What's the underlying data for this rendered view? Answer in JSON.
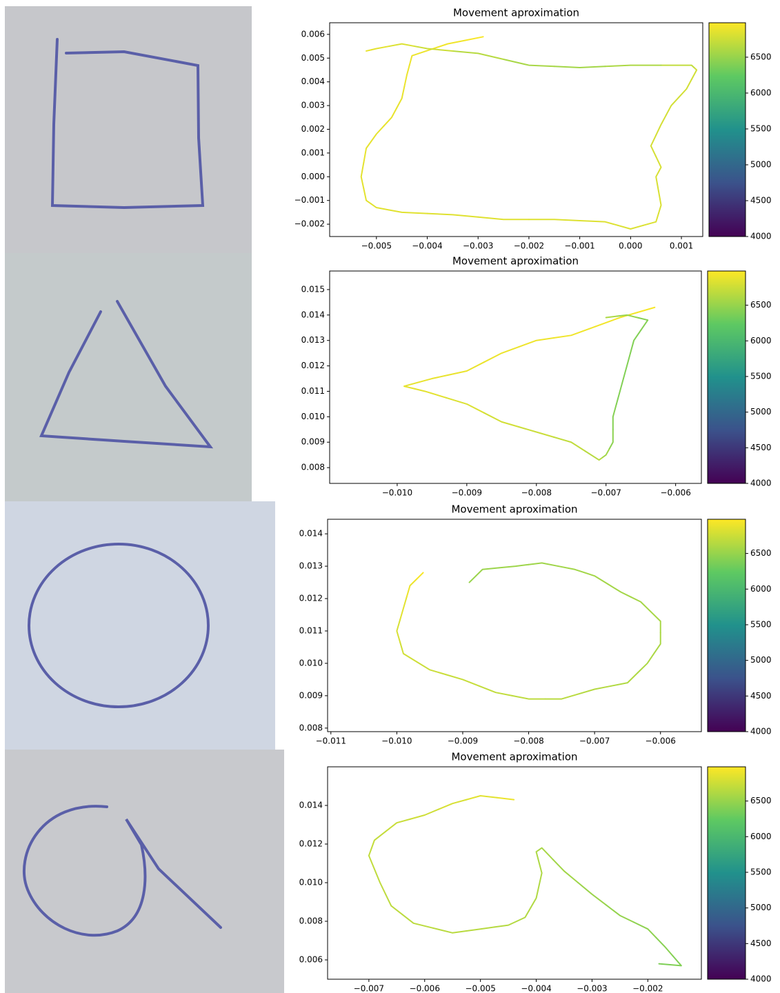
{
  "chart_data": [
    {
      "type": "line",
      "title": "Movement aproximation",
      "colormap": "viridis",
      "x": [
        -0.0029,
        -0.0036,
        -0.0043,
        -0.0044,
        -0.0045,
        -0.0047,
        -0.005,
        -0.0052,
        -0.0053,
        -0.0052,
        -0.005,
        -0.0045,
        -0.0035,
        -0.0025,
        -0.0015,
        -0.0005,
        0.0,
        0.0005,
        0.0006,
        0.0005,
        0.0006,
        0.0004,
        0.0006,
        0.0008,
        0.0011,
        0.0013,
        0.0012,
        0.0,
        -0.001,
        -0.002,
        -0.003,
        -0.004,
        -0.0045,
        -0.005,
        -0.0052
      ],
      "y": [
        0.0059,
        0.0056,
        0.0051,
        0.0043,
        0.0033,
        0.0025,
        0.0018,
        0.0012,
        0.0,
        -0.001,
        -0.0013,
        -0.0015,
        -0.0016,
        -0.0018,
        -0.0018,
        -0.0019,
        -0.0022,
        -0.0019,
        -0.0012,
        0.0,
        0.0004,
        0.0013,
        0.0022,
        0.003,
        0.0037,
        0.0045,
        0.0047,
        0.0047,
        0.0046,
        0.0047,
        0.0052,
        0.0054,
        0.0056,
        0.0054,
        0.0053
      ],
      "c": [
        6950,
        6920,
        6900,
        6900,
        6880,
        6880,
        6870,
        6870,
        6860,
        6860,
        6850,
        6850,
        6840,
        6840,
        6830,
        6830,
        6820,
        6820,
        6810,
        6800,
        6800,
        6790,
        6790,
        6780,
        6780,
        6770,
        6700,
        6600,
        6560,
        6580,
        6650,
        6750,
        6820,
        6860,
        6880
      ],
      "xlim": [
        -0.00592,
        0.00142
      ],
      "ylim": [
        -0.00252,
        0.00649
      ],
      "xticks": [
        {
          "value": -0.005,
          "label": "−0.005"
        },
        {
          "value": -0.004,
          "label": "−0.004"
        },
        {
          "value": -0.003,
          "label": "−0.003"
        },
        {
          "value": -0.002,
          "label": "−0.002"
        },
        {
          "value": -0.001,
          "label": "−0.001"
        },
        {
          "value": 0,
          "label": "0.000"
        },
        0.001
      ],
      "yticks": [
        {
          "value": -0.002,
          "label": "−0.002"
        },
        {
          "value": -0.001,
          "label": "−0.001"
        },
        {
          "value": 0,
          "label": "0.000"
        },
        0.001,
        0.002,
        0.003,
        0.004,
        0.005,
        0.006
      ],
      "clim": [
        4000,
        6980
      ],
      "colorbar_ticks": [
        4000,
        4500,
        5000,
        5500,
        6000,
        6500
      ]
    },
    {
      "type": "line",
      "title": "Movement aproximation",
      "colormap": "viridis",
      "x": [
        -0.0063,
        -0.0068,
        -0.0075,
        -0.008,
        -0.0085,
        -0.009,
        -0.0095,
        -0.0099,
        -0.0096,
        -0.009,
        -0.0085,
        -0.008,
        -0.0075,
        -0.0071,
        -0.007,
        -0.0069,
        -0.0069,
        -0.0068,
        -0.0067,
        -0.0066,
        -0.0064,
        -0.0067,
        -0.007
      ],
      "y": [
        0.0143,
        0.0139,
        0.0132,
        0.013,
        0.0125,
        0.0118,
        0.0115,
        0.0112,
        0.011,
        0.0105,
        0.0098,
        0.0094,
        0.009,
        0.0083,
        0.0085,
        0.009,
        0.01,
        0.011,
        0.012,
        0.013,
        0.0138,
        0.014,
        0.0139
      ],
      "c": [
        6950,
        6930,
        6920,
        6910,
        6900,
        6890,
        6880,
        6870,
        6860,
        6820,
        6780,
        6740,
        6700,
        6650,
        6550,
        6450,
        6420,
        6400,
        6400,
        6400,
        6420,
        6500,
        6600
      ],
      "xlim": [
        -0.01097,
        -0.00563
      ],
      "ylim": [
        0.00738,
        0.01573
      ],
      "xticks": [
        {
          "value": -0.01,
          "label": "−0.010"
        },
        {
          "value": -0.009,
          "label": "−0.009"
        },
        {
          "value": -0.008,
          "label": "−0.008"
        },
        {
          "value": -0.007,
          "label": "−0.007"
        },
        {
          "value": -0.006,
          "label": "−0.006"
        }
      ],
      "yticks": [
        0.008,
        0.009,
        {
          "value": 0.01,
          "label": "0.010"
        },
        0.011,
        0.012,
        0.013,
        0.014,
        0.015
      ],
      "clim": [
        4000,
        6980
      ],
      "colorbar_ticks": [
        4000,
        4500,
        5000,
        5500,
        6000,
        6500
      ]
    },
    {
      "type": "line",
      "title": "Movement aproximation",
      "colormap": "viridis",
      "x": [
        -0.0089,
        -0.0087,
        -0.0082,
        -0.0078,
        -0.0073,
        -0.007,
        -0.0066,
        -0.0063,
        -0.006,
        -0.006,
        -0.0062,
        -0.0065,
        -0.007,
        -0.0075,
        -0.008,
        -0.0085,
        -0.009,
        -0.0095,
        -0.0099,
        -0.01,
        -0.0099,
        -0.0098,
        -0.0096
      ],
      "y": [
        0.0125,
        0.0129,
        0.013,
        0.0131,
        0.0129,
        0.0127,
        0.0122,
        0.0119,
        0.0113,
        0.0106,
        0.01,
        0.0094,
        0.0092,
        0.0089,
        0.0089,
        0.0091,
        0.0095,
        0.0098,
        0.0103,
        0.011,
        0.0117,
        0.0124,
        0.0128
      ],
      "c": [
        6500,
        6520,
        6530,
        6540,
        6550,
        6560,
        6560,
        6570,
        6580,
        6590,
        6600,
        6620,
        6640,
        6660,
        6680,
        6700,
        6720,
        6740,
        6770,
        6800,
        6850,
        6900,
        6950
      ],
      "xlim": [
        -0.01105,
        -0.00538
      ],
      "ylim": [
        0.00789,
        0.01445
      ],
      "xticks": [
        {
          "value": -0.011,
          "label": "−0.011"
        },
        {
          "value": -0.01,
          "label": "−0.010"
        },
        {
          "value": -0.009,
          "label": "−0.009"
        },
        {
          "value": -0.008,
          "label": "−0.008"
        },
        {
          "value": -0.007,
          "label": "−0.007"
        },
        {
          "value": -0.006,
          "label": "−0.006"
        }
      ],
      "yticks": [
        0.008,
        0.009,
        {
          "value": 0.01,
          "label": "0.010"
        },
        0.011,
        0.012,
        0.013,
        0.014
      ],
      "clim": [
        4000,
        6980
      ],
      "colorbar_ticks": [
        4000,
        4500,
        5000,
        5500,
        6000,
        6500
      ]
    },
    {
      "type": "line",
      "title": "Movement aproximation",
      "colormap": "viridis",
      "x": [
        -0.0044,
        -0.005,
        -0.0055,
        -0.006,
        -0.0065,
        -0.0069,
        -0.007,
        -0.0068,
        -0.0066,
        -0.0062,
        -0.0055,
        -0.005,
        -0.0045,
        -0.0042,
        -0.004,
        -0.0039,
        -0.004,
        -0.0039,
        -0.0035,
        -0.003,
        -0.0025,
        -0.002,
        -0.0017,
        -0.0014,
        -0.0018
      ],
      "y": [
        0.0143,
        0.0145,
        0.0141,
        0.0135,
        0.0131,
        0.0122,
        0.0114,
        0.01,
        0.0088,
        0.0079,
        0.0074,
        0.0076,
        0.0078,
        0.0082,
        0.0092,
        0.0105,
        0.0116,
        0.0118,
        0.0106,
        0.0094,
        0.0083,
        0.0076,
        0.0067,
        0.0057,
        0.0058
      ],
      "c": [
        6900,
        6850,
        6800,
        6760,
        6730,
        6710,
        6700,
        6690,
        6680,
        6670,
        6660,
        6650,
        6640,
        6630,
        6620,
        6610,
        6600,
        6580,
        6550,
        6520,
        6490,
        6460,
        6430,
        6400,
        6380
      ],
      "xlim": [
        -0.00774,
        -0.00104
      ],
      "ylim": [
        0.005,
        0.016
      ],
      "xticks": [
        {
          "value": -0.007,
          "label": "−0.007"
        },
        {
          "value": -0.006,
          "label": "−0.006"
        },
        {
          "value": -0.005,
          "label": "−0.005"
        },
        {
          "value": -0.004,
          "label": "−0.004"
        },
        {
          "value": -0.003,
          "label": "−0.003"
        },
        {
          "value": -0.002,
          "label": "−0.002"
        }
      ],
      "yticks": [
        0.006,
        0.008,
        {
          "value": 0.01,
          "label": "0.010"
        },
        0.012,
        0.014
      ],
      "clim": [
        4000,
        6980
      ],
      "colorbar_ticks": [
        4000,
        4500,
        5000,
        5500,
        6000,
        6500
      ]
    }
  ]
}
